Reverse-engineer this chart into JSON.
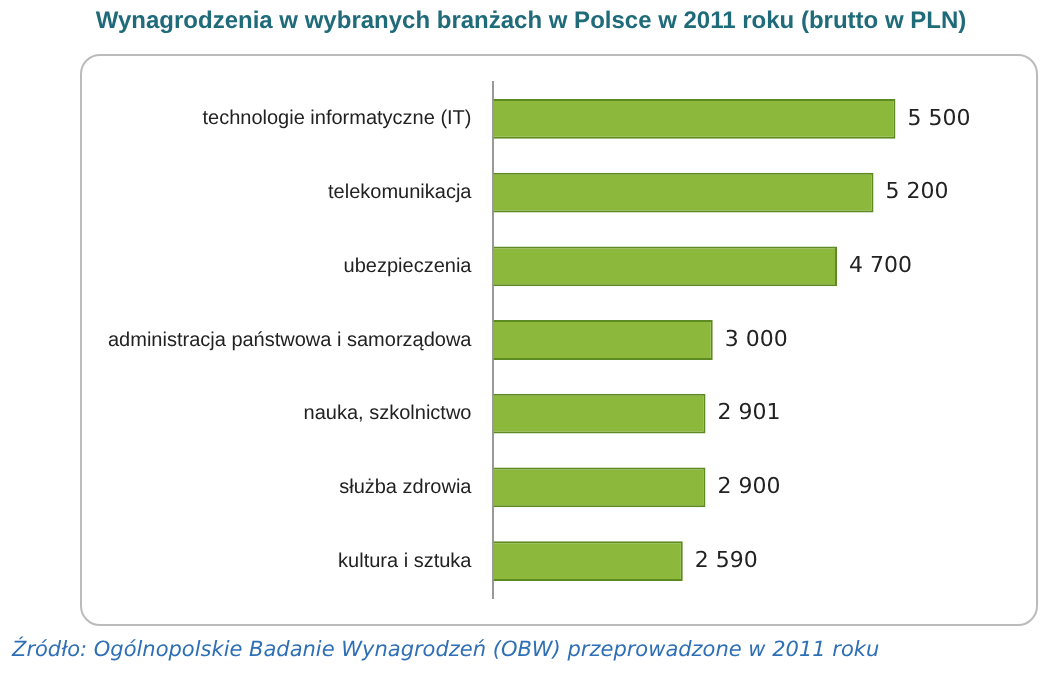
{
  "chart_data": {
    "type": "bar",
    "orientation": "horizontal",
    "title": "Wynagrodzenia w wybranych branżach w Polsce w 2011  roku (brutto w PLN)",
    "categories": [
      "technologie informatyczne (IT)",
      "telekomunikacja",
      "ubezpieczenia",
      "administracja państwowa i samorządowa",
      "nauka, szkolnictwo",
      "służba zdrowia",
      "kultura i sztuka"
    ],
    "values": [
      5500,
      5200,
      4700,
      3000,
      2901,
      2900,
      2590
    ],
    "value_labels": [
      "5 500",
      "5 200",
      "4 700",
      "3 000",
      "2 901",
      "2 900",
      "2 590"
    ],
    "color": "#8cb83c",
    "legend": false,
    "annotations": [
      "Źródło: Ogólnopolskie Badanie Wynagrodzeń (OBW) przeprowadzone w 2011 roku"
    ]
  }
}
